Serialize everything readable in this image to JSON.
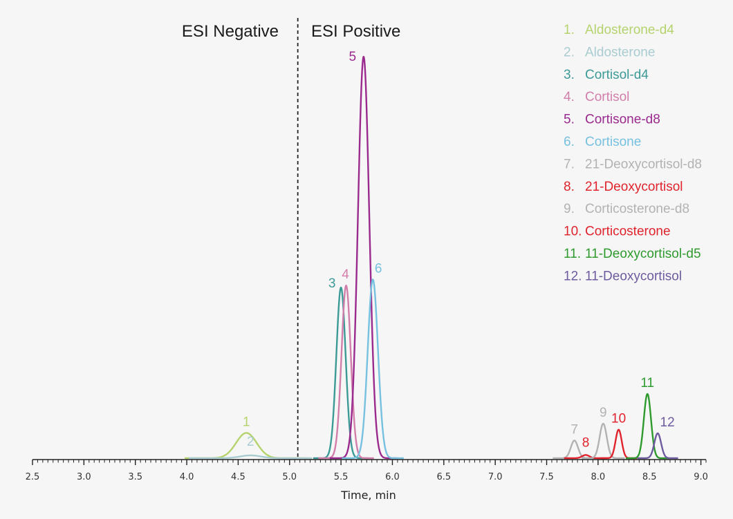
{
  "chart_data": {
    "type": "line",
    "xlabel": "Time, min",
    "ylabel": "",
    "xlim": [
      2.5,
      9.05
    ],
    "ylim": [
      0,
      100
    ],
    "xticks": [
      "2.5",
      "3.0",
      "3.5",
      "4.0",
      "4.5",
      "5.0",
      "5.5",
      "6.0",
      "6.5",
      "7.0",
      "7.5",
      "8.0",
      "8.5",
      "9.0"
    ],
    "grid": false,
    "legend_position": "top-right",
    "divider_x": 5.08,
    "regions": {
      "left": "ESI Negative",
      "right": "ESI Positive"
    },
    "series": [
      {
        "id": "1",
        "number": "1.",
        "name": "Aldosterone-d4",
        "color": "#b5d36c",
        "peak_x": 4.58,
        "peak_y": 6.3,
        "width": 0.1,
        "label": "1"
      },
      {
        "id": "2",
        "number": "2.",
        "name": "Aldosterone",
        "color": "#a9ccd0",
        "peak_x": 4.62,
        "peak_y": 0.7,
        "width": 0.1,
        "label": "2"
      },
      {
        "id": "3",
        "number": "3.",
        "name": "Cortisol-d4",
        "color": "#3c9a96",
        "peak_x": 5.5,
        "peak_y": 42.5,
        "width": 0.045,
        "label": "3"
      },
      {
        "id": "4",
        "number": "4.",
        "name": "Cortisol",
        "color": "#d27eab",
        "peak_x": 5.55,
        "peak_y": 43.0,
        "width": 0.045,
        "label": "4"
      },
      {
        "id": "5",
        "number": "5.",
        "name": "Cortisone-d8",
        "color": "#9a2a8e",
        "peak_x": 5.72,
        "peak_y": 100,
        "width": 0.055,
        "label": "5"
      },
      {
        "id": "6",
        "number": "6.",
        "name": "Cortisone",
        "color": "#76c0e0",
        "peak_x": 5.81,
        "peak_y": 44.5,
        "width": 0.05,
        "label": "6"
      },
      {
        "id": "7",
        "number": "7.",
        "name": "21-Deoxycortisol-d8",
        "color": "#b2b2b2",
        "peak_x": 7.77,
        "peak_y": 4.4,
        "width": 0.035,
        "label": "7"
      },
      {
        "id": "8",
        "number": "8.",
        "name": "21-Deoxycortisol",
        "color": "#e0232c",
        "peak_x": 7.88,
        "peak_y": 0.8,
        "width": 0.035,
        "label": "8"
      },
      {
        "id": "9",
        "number": "9.",
        "name": "Corticosterone-d8",
        "color": "#b2b2b2",
        "peak_x": 8.05,
        "peak_y": 8.6,
        "width": 0.035,
        "label": "9"
      },
      {
        "id": "10",
        "number": "10.",
        "name": "Corticosterone",
        "color": "#e0232c",
        "peak_x": 8.2,
        "peak_y": 7.1,
        "width": 0.03,
        "label": "10"
      },
      {
        "id": "11",
        "number": "11.",
        "name": "11-Deoxycortisol-d5",
        "color": "#2e9a2e",
        "peak_x": 8.48,
        "peak_y": 16.0,
        "width": 0.035,
        "label": "11"
      },
      {
        "id": "12",
        "number": "12.",
        "name": "11-Deoxycortisol",
        "color": "#6e5a9e",
        "peak_x": 8.58,
        "peak_y": 6.2,
        "width": 0.033,
        "label": "12"
      }
    ]
  }
}
